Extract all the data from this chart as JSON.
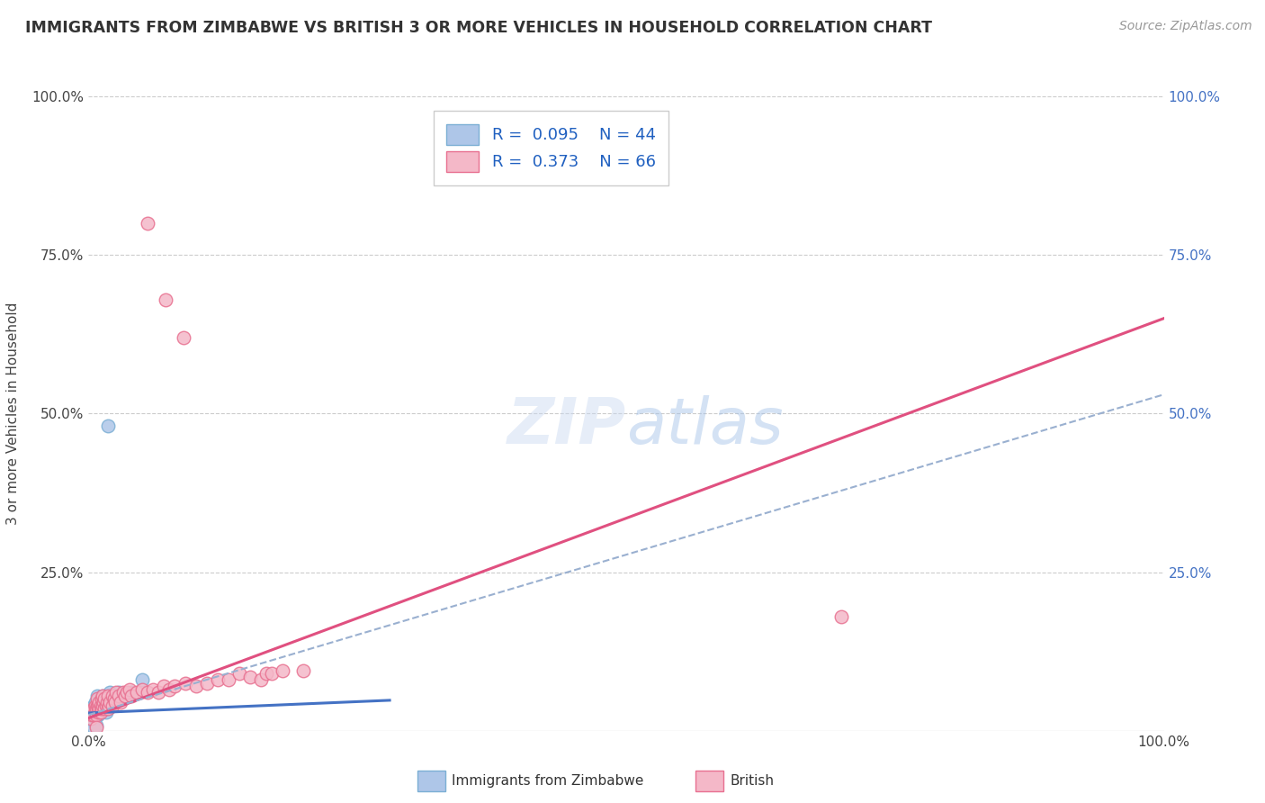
{
  "title": "IMMIGRANTS FROM ZIMBABWE VS BRITISH 3 OR MORE VEHICLES IN HOUSEHOLD CORRELATION CHART",
  "source_text": "Source: ZipAtlas.com",
  "ylabel": "3 or more Vehicles in Household",
  "xlim": [
    0.0,
    1.0
  ],
  "ylim": [
    0.0,
    1.0
  ],
  "watermark": "ZIPatlas",
  "scatter_blue_fill": "#aec6e8",
  "scatter_blue_edge": "#7bafd4",
  "scatter_pink_fill": "#f4b8c8",
  "scatter_pink_edge": "#e87090",
  "line_blue_color": "#4472c4",
  "line_pink_color": "#e05080",
  "line_dashed_color": "#9ab0d0",
  "right_axis_color": "#4472c4",
  "background_color": "#ffffff",
  "grid_color": "#cccccc",
  "blue_scatter": [
    [
      0.002,
      0.02
    ],
    [
      0.003,
      0.03
    ],
    [
      0.004,
      0.025
    ],
    [
      0.005,
      0.035
    ],
    [
      0.005,
      0.04
    ],
    [
      0.006,
      0.03
    ],
    [
      0.006,
      0.045
    ],
    [
      0.007,
      0.025
    ],
    [
      0.007,
      0.035
    ],
    [
      0.008,
      0.03
    ],
    [
      0.008,
      0.04
    ],
    [
      0.008,
      0.055
    ],
    [
      0.009,
      0.025
    ],
    [
      0.009,
      0.04
    ],
    [
      0.01,
      0.035
    ],
    [
      0.01,
      0.05
    ],
    [
      0.011,
      0.03
    ],
    [
      0.011,
      0.04
    ],
    [
      0.012,
      0.035
    ],
    [
      0.012,
      0.045
    ],
    [
      0.013,
      0.04
    ],
    [
      0.013,
      0.055
    ],
    [
      0.014,
      0.035
    ],
    [
      0.015,
      0.04
    ],
    [
      0.015,
      0.05
    ],
    [
      0.016,
      0.03
    ],
    [
      0.016,
      0.045
    ],
    [
      0.017,
      0.05
    ],
    [
      0.018,
      0.035
    ],
    [
      0.018,
      0.055
    ],
    [
      0.019,
      0.04
    ],
    [
      0.02,
      0.045
    ],
    [
      0.02,
      0.06
    ],
    [
      0.022,
      0.05
    ],
    [
      0.024,
      0.055
    ],
    [
      0.026,
      0.045
    ],
    [
      0.028,
      0.06
    ],
    [
      0.03,
      0.05
    ],
    [
      0.035,
      0.055
    ],
    [
      0.04,
      0.06
    ],
    [
      0.05,
      0.08
    ],
    [
      0.018,
      0.48
    ],
    [
      0.005,
      0.005
    ],
    [
      0.007,
      0.008
    ]
  ],
  "pink_scatter": [
    [
      0.002,
      0.02
    ],
    [
      0.003,
      0.025
    ],
    [
      0.004,
      0.03
    ],
    [
      0.005,
      0.025
    ],
    [
      0.005,
      0.035
    ],
    [
      0.006,
      0.03
    ],
    [
      0.006,
      0.04
    ],
    [
      0.007,
      0.025
    ],
    [
      0.007,
      0.035
    ],
    [
      0.008,
      0.04
    ],
    [
      0.008,
      0.05
    ],
    [
      0.009,
      0.03
    ],
    [
      0.009,
      0.04
    ],
    [
      0.01,
      0.035
    ],
    [
      0.01,
      0.045
    ],
    [
      0.011,
      0.03
    ],
    [
      0.011,
      0.04
    ],
    [
      0.012,
      0.035
    ],
    [
      0.012,
      0.05
    ],
    [
      0.013,
      0.04
    ],
    [
      0.013,
      0.055
    ],
    [
      0.014,
      0.045
    ],
    [
      0.015,
      0.035
    ],
    [
      0.015,
      0.05
    ],
    [
      0.016,
      0.04
    ],
    [
      0.017,
      0.045
    ],
    [
      0.018,
      0.035
    ],
    [
      0.018,
      0.055
    ],
    [
      0.019,
      0.04
    ],
    [
      0.02,
      0.045
    ],
    [
      0.022,
      0.04
    ],
    [
      0.022,
      0.055
    ],
    [
      0.024,
      0.05
    ],
    [
      0.025,
      0.045
    ],
    [
      0.026,
      0.06
    ],
    [
      0.028,
      0.055
    ],
    [
      0.03,
      0.045
    ],
    [
      0.032,
      0.06
    ],
    [
      0.034,
      0.055
    ],
    [
      0.036,
      0.06
    ],
    [
      0.038,
      0.065
    ],
    [
      0.04,
      0.055
    ],
    [
      0.045,
      0.06
    ],
    [
      0.05,
      0.065
    ],
    [
      0.055,
      0.06
    ],
    [
      0.06,
      0.065
    ],
    [
      0.065,
      0.06
    ],
    [
      0.07,
      0.07
    ],
    [
      0.075,
      0.065
    ],
    [
      0.08,
      0.07
    ],
    [
      0.09,
      0.075
    ],
    [
      0.1,
      0.07
    ],
    [
      0.11,
      0.075
    ],
    [
      0.12,
      0.08
    ],
    [
      0.13,
      0.08
    ],
    [
      0.14,
      0.09
    ],
    [
      0.15,
      0.085
    ],
    [
      0.16,
      0.08
    ],
    [
      0.165,
      0.09
    ],
    [
      0.17,
      0.09
    ],
    [
      0.18,
      0.095
    ],
    [
      0.2,
      0.095
    ],
    [
      0.007,
      0.005
    ],
    [
      0.055,
      0.8
    ],
    [
      0.072,
      0.68
    ],
    [
      0.088,
      0.62
    ],
    [
      0.7,
      0.18
    ]
  ],
  "blue_line_x": [
    0.0,
    0.28
  ],
  "blue_line_y": [
    0.028,
    0.048
  ],
  "pink_line_x": [
    0.0,
    1.0
  ],
  "pink_line_y": [
    0.02,
    0.65
  ],
  "dashed_line_x": [
    0.0,
    1.0
  ],
  "dashed_line_y": [
    0.025,
    0.53
  ]
}
